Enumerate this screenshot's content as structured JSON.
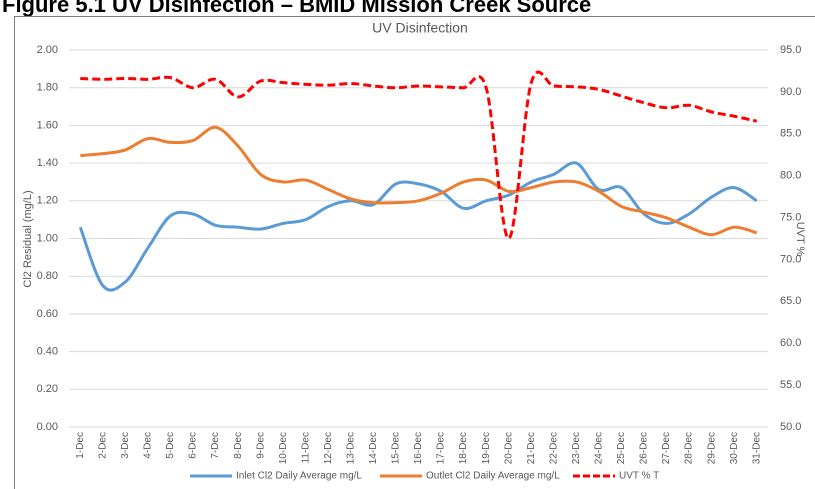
{
  "heading": "Figure 5.1     UV Disinfection – BMID Mission Creek Source",
  "chart_data": {
    "type": "line",
    "title": "UV Disinfection",
    "y_label": "Cl2 Residual (mg/L)",
    "y2_label": "UVT %",
    "categories": [
      "1-Dec",
      "2-Dec",
      "3-Dec",
      "4-Dec",
      "5-Dec",
      "6-Dec",
      "7-Dec",
      "8-Dec",
      "9-Dec",
      "10-Dec",
      "11-Dec",
      "12-Dec",
      "13-Dec",
      "14-Dec",
      "15-Dec",
      "16-Dec",
      "17-Dec",
      "18-Dec",
      "19-Dec",
      "20-Dec",
      "21-Dec",
      "22-Dec",
      "23-Dec",
      "24-Dec",
      "25-Dec",
      "26-Dec",
      "27-Dec",
      "28-Dec",
      "29-Dec",
      "30-Dec",
      "31-Dec"
    ],
    "series": [
      {
        "name": "Inlet Cl2 Daily Average mg/L",
        "color": "#5b9bd5",
        "dashed": false,
        "axis": "y",
        "values": [
          1.06,
          0.75,
          0.77,
          0.95,
          1.12,
          1.13,
          1.07,
          1.06,
          1.05,
          1.08,
          1.1,
          1.17,
          1.2,
          1.18,
          1.29,
          1.29,
          1.25,
          1.16,
          1.2,
          1.23,
          1.3,
          1.34,
          1.4,
          1.26,
          1.27,
          1.13,
          1.08,
          1.13,
          1.22,
          1.27,
          1.2
        ]
      },
      {
        "name": "Outlet Cl2 Daily Average mg/L",
        "color": "#ed7d31",
        "dashed": false,
        "axis": "y",
        "values": [
          1.44,
          1.45,
          1.47,
          1.53,
          1.51,
          1.52,
          1.59,
          1.49,
          1.34,
          1.3,
          1.31,
          1.26,
          1.21,
          1.19,
          1.19,
          1.2,
          1.24,
          1.3,
          1.31,
          1.25,
          1.27,
          1.3,
          1.3,
          1.25,
          1.17,
          1.14,
          1.11,
          1.06,
          1.02,
          1.06,
          1.03
        ]
      },
      {
        "name": "UVT % T",
        "color": "#ff0000",
        "dashed": true,
        "axis": "y2",
        "values": [
          91.6,
          91.5,
          91.6,
          91.5,
          91.7,
          90.5,
          91.5,
          89.4,
          91.3,
          91.1,
          90.9,
          90.8,
          91.0,
          90.7,
          90.5,
          90.7,
          90.6,
          90.5,
          90.5,
          72.5,
          91.1,
          90.7,
          90.6,
          90.3,
          89.5,
          88.7,
          88.1,
          88.4,
          87.6,
          87.1,
          86.5
        ]
      }
    ],
    "ylim": [
      0,
      2
    ],
    "yticks": [
      {
        "value": 0,
        "label": "0.00"
      },
      {
        "value": 0.2,
        "label": "0.20"
      },
      {
        "value": 0.4,
        "label": "0.40"
      },
      {
        "value": 0.6,
        "label": "0.60"
      },
      {
        "value": 0.8,
        "label": "0.80"
      },
      {
        "value": 1,
        "label": "1.00"
      },
      {
        "value": 1.2,
        "label": "1.20"
      },
      {
        "value": 1.4,
        "label": "1.40"
      },
      {
        "value": 1.6,
        "label": "1.60"
      },
      {
        "value": 1.8,
        "label": "1.80"
      },
      {
        "value": 2,
        "label": "2.00"
      }
    ],
    "y2lim": [
      50,
      95
    ],
    "y2ticks": [
      {
        "value": 50,
        "label": "50.0"
      },
      {
        "value": 55,
        "label": "55.0"
      },
      {
        "value": 60,
        "label": "60.0"
      },
      {
        "value": 65,
        "label": "65.0"
      },
      {
        "value": 70,
        "label": "70.0"
      },
      {
        "value": 75,
        "label": "75.0"
      },
      {
        "value": 80,
        "label": "80.0"
      },
      {
        "value": 85,
        "label": "85.0"
      },
      {
        "value": 90,
        "label": "90.0"
      },
      {
        "value": 95,
        "label": "95.0"
      }
    ],
    "grid": true
  }
}
